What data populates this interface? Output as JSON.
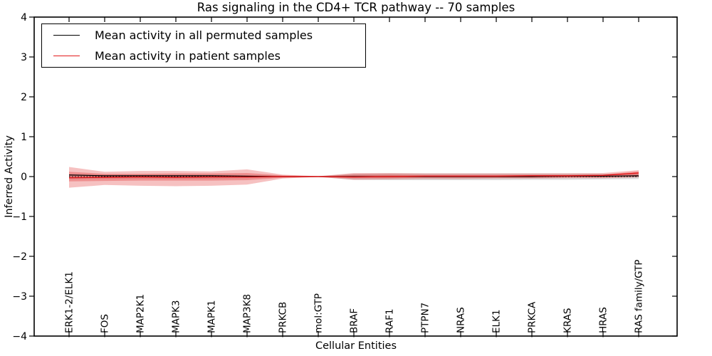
{
  "title": "Ras signaling in the CD4+ TCR pathway -- 70 samples",
  "legend": {
    "entries": [
      {
        "label": "Mean activity in all permuted samples",
        "color": "#000000"
      },
      {
        "label": "Mean activity in patient samples",
        "color": "#e41a1c"
      }
    ]
  },
  "chart_data": {
    "type": "line",
    "title": "Ras signaling in the CD4+ TCR pathway -- 70 samples",
    "xlabel": "Cellular Entities",
    "ylabel": "Inferred Activity",
    "ylim": [
      -4,
      4
    ],
    "y_ticks": [
      4,
      3,
      2,
      1,
      0,
      -1,
      -2,
      -3,
      -4
    ],
    "grid": false,
    "legend_position": "upper-left",
    "categories": [
      "ERK1-2/ELK1",
      "FOS",
      "MAP2K1",
      "MAPK3",
      "MAPK1",
      "MAP3K8",
      "PRKCB",
      "mol:GTP",
      "BRAF",
      "RAF1",
      "PTPN7",
      "NRAS",
      "ELK1",
      "PRKCA",
      "KRAS",
      "HRAS",
      "RAS family/GTP"
    ],
    "series": [
      {
        "name": "Mean activity in all permuted samples",
        "color": "#000000",
        "values": [
          0.04,
          0.02,
          0.02,
          0.02,
          0.02,
          0.01,
          0.0,
          0.0,
          0.0,
          0.0,
          0.0,
          0.0,
          0.0,
          0.0,
          0.01,
          0.01,
          0.02
        ]
      },
      {
        "name": "Mean activity in patient samples",
        "color": "#e41a1c",
        "values": [
          -0.03,
          -0.02,
          -0.01,
          -0.02,
          -0.01,
          -0.01,
          0.0,
          0.0,
          -0.01,
          0.0,
          0.01,
          0.01,
          0.01,
          0.02,
          0.02,
          0.03,
          0.09
        ]
      }
    ],
    "bands": [
      {
        "name": "permuted-std-band",
        "color": "#aaaaaa",
        "opacity": 0.42,
        "hi": [
          0.06,
          0.05,
          0.05,
          0.05,
          0.05,
          0.04,
          0.02,
          0.01,
          0.07,
          0.08,
          0.08,
          0.08,
          0.08,
          0.08,
          0.08,
          0.07,
          0.07
        ],
        "lo": [
          -0.06,
          -0.05,
          -0.05,
          -0.05,
          -0.05,
          -0.04,
          -0.02,
          -0.01,
          -0.08,
          -0.09,
          -0.09,
          -0.09,
          -0.09,
          -0.08,
          -0.08,
          -0.07,
          -0.06
        ]
      },
      {
        "name": "patient-std-outer-band",
        "color": "#dd2222",
        "opacity": 0.28,
        "hi": [
          0.24,
          0.12,
          0.14,
          0.14,
          0.13,
          0.18,
          0.05,
          0.01,
          0.09,
          0.09,
          0.08,
          0.08,
          0.08,
          0.08,
          0.08,
          0.09,
          0.16
        ],
        "lo": [
          -0.28,
          -0.21,
          -0.23,
          -0.24,
          -0.23,
          -0.2,
          -0.05,
          -0.01,
          -0.08,
          -0.07,
          -0.06,
          -0.06,
          -0.05,
          -0.05,
          -0.04,
          -0.04,
          -0.02
        ]
      },
      {
        "name": "patient-std-inner-band",
        "color": "#dd2222",
        "opacity": 0.3,
        "hi": [
          0.12,
          0.07,
          0.07,
          0.08,
          0.08,
          0.09,
          0.03,
          0.01,
          0.05,
          0.05,
          0.04,
          0.04,
          0.04,
          0.04,
          0.04,
          0.05,
          0.13
        ],
        "lo": [
          -0.12,
          -0.11,
          -0.1,
          -0.1,
          -0.1,
          -0.09,
          -0.03,
          -0.01,
          -0.04,
          -0.04,
          -0.03,
          -0.03,
          -0.03,
          -0.03,
          -0.02,
          -0.02,
          0.0
        ]
      }
    ],
    "zero_line": {
      "style": "dotted",
      "color": "#000000",
      "y": 0
    }
  }
}
